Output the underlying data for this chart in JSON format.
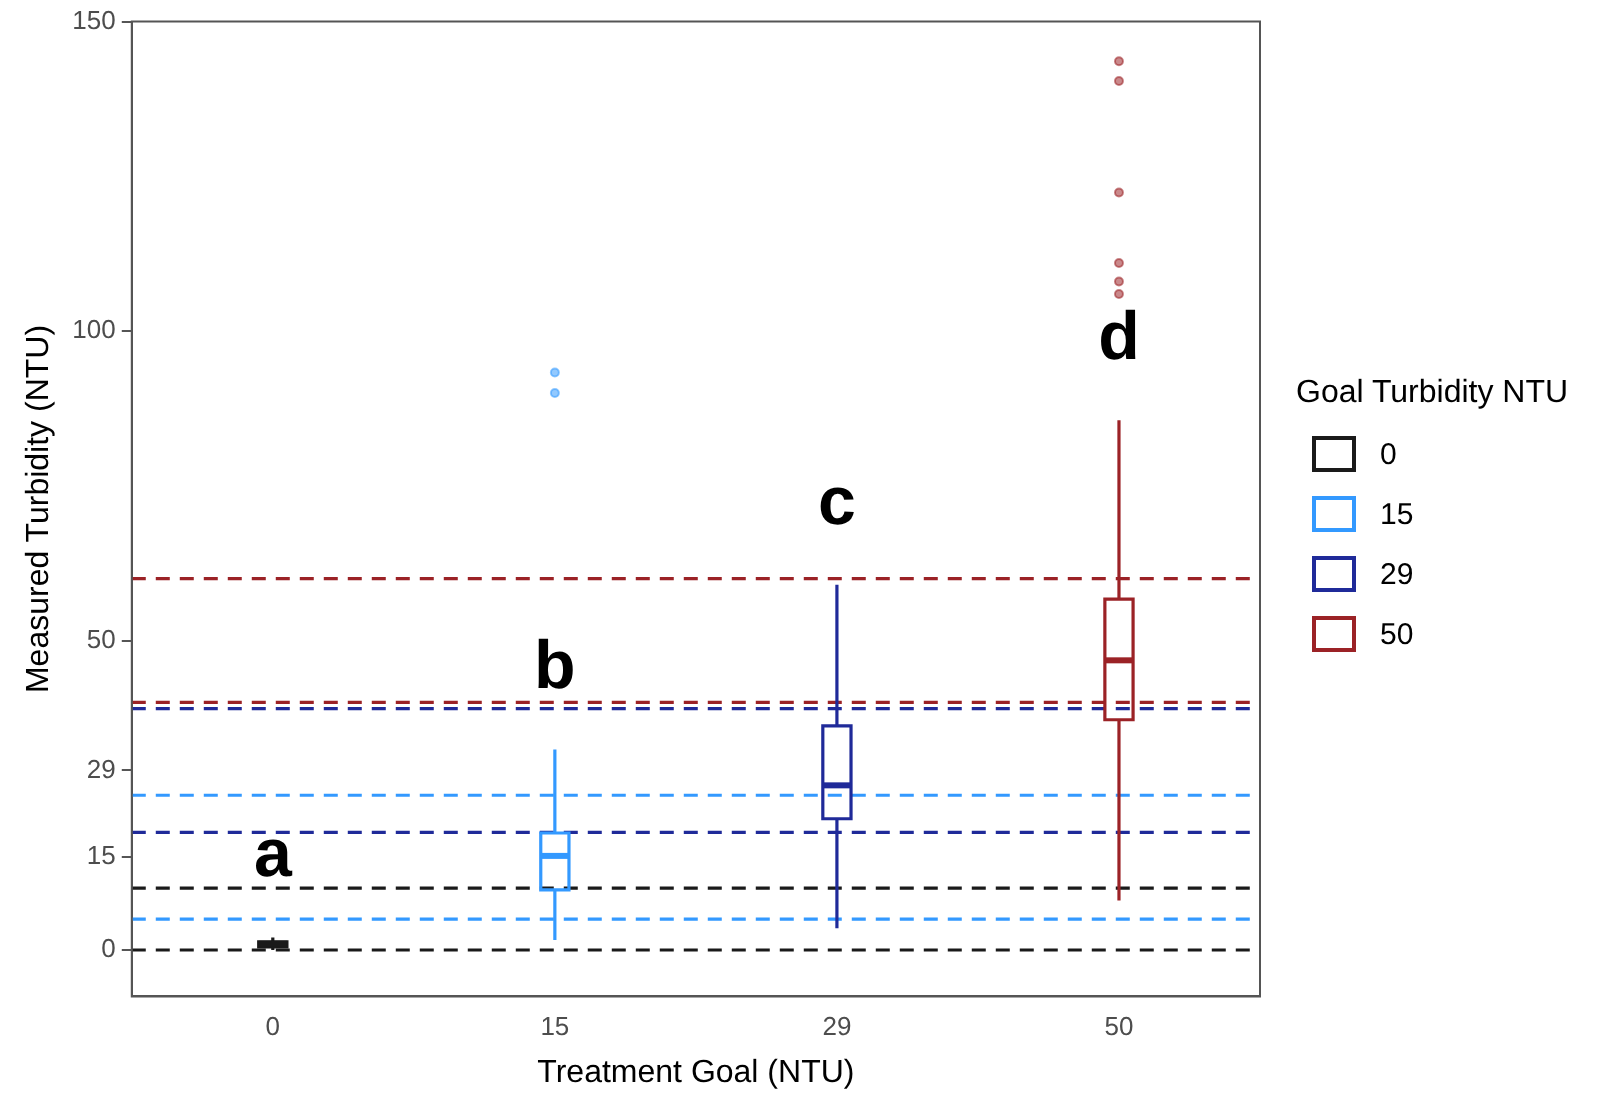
{
  "chart_data": {
    "type": "box",
    "xlabel": "Treatment Goal (NTU)",
    "ylabel": "Measured Turbidity (NTU)",
    "legend_title": "Goal Turbidity NTU",
    "legend": "right",
    "grid": false,
    "categories": [
      "0",
      "15",
      "29",
      "50"
    ],
    "ylim": [
      -7.5,
      150
    ],
    "yticks": [
      0,
      15,
      29,
      50,
      100,
      150
    ],
    "series": [
      {
        "name": "0",
        "color": "#1a1a1a",
        "boxes": [
          {
            "low": 0,
            "q1": 0.5,
            "median": 1,
            "q3": 1.3,
            "high": 2
          },
          null,
          null,
          null
        ]
      },
      {
        "name": "15",
        "color": "#3399ff",
        "boxes": [
          null,
          {
            "low": 1.6,
            "q1": 9.7,
            "median": 15.2,
            "q3": 18.9,
            "high": 32.4,
            "outliers": [
              93.3,
              90
            ]
          },
          null,
          null
        ]
      },
      {
        "name": "29",
        "color": "#1f2a99",
        "boxes": [
          null,
          null,
          {
            "low": 3.5,
            "q1": 21.2,
            "median": 26.6,
            "q3": 36.2,
            "high": 59
          },
          null
        ]
      },
      {
        "name": "50",
        "color": "#9b2226",
        "boxes": [
          null,
          null,
          null,
          {
            "low": 8,
            "q1": 37.2,
            "median": 46.8,
            "q3": 56.7,
            "high": 85.6,
            "outliers": [
              143.6,
              140.4,
              122.4,
              111,
              108,
              106
            ]
          }
        ]
      }
    ],
    "ref_lines": [
      {
        "axis": "y",
        "value": 0,
        "color": "#1a1a1a",
        "line_style": "dashed"
      },
      {
        "axis": "y",
        "value": 10,
        "color": "#1a1a1a",
        "line_style": "dashed"
      },
      {
        "axis": "y",
        "value": 5,
        "color": "#3399ff",
        "line_style": "dashed"
      },
      {
        "axis": "y",
        "value": 25,
        "color": "#3399ff",
        "line_style": "dashed"
      },
      {
        "axis": "y",
        "value": 19,
        "color": "#1f2a99",
        "line_style": "dashed"
      },
      {
        "axis": "y",
        "value": 39,
        "color": "#1f2a99",
        "line_style": "dashed"
      },
      {
        "axis": "y",
        "value": 40,
        "color": "#9b2226",
        "line_style": "dashed"
      },
      {
        "axis": "y",
        "value": 60,
        "color": "#9b2226",
        "line_style": "dashed"
      }
    ],
    "annotations": [
      "a",
      "b",
      "c",
      "d"
    ]
  }
}
